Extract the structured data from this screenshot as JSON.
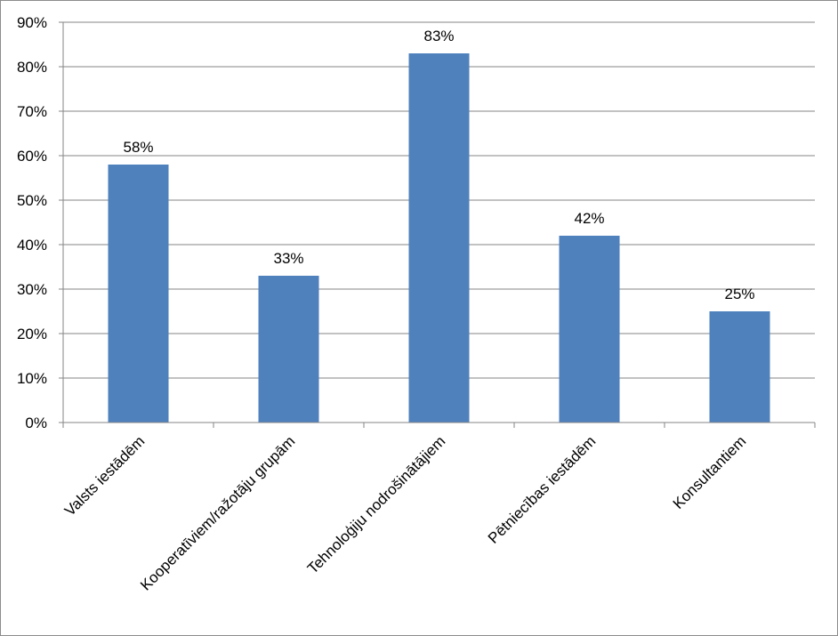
{
  "chart_data": {
    "type": "bar",
    "categories": [
      "Valsts iestādēm",
      "Kooperatīviem/ražotāju grupām",
      "Tehnoloģiju nodrošinātājiem",
      "Pētniecības iestādēm",
      "Konsultantiem"
    ],
    "values": [
      58,
      33,
      83,
      42,
      25
    ],
    "data_labels": [
      "58%",
      "33%",
      "83%",
      "42%",
      "25%"
    ],
    "title": "",
    "xlabel": "",
    "ylabel": "",
    "ylim": [
      0,
      90
    ],
    "y_ticks": [
      0,
      10,
      20,
      30,
      40,
      50,
      60,
      70,
      80,
      90
    ],
    "y_tick_labels": [
      "0%",
      "10%",
      "20%",
      "30%",
      "40%",
      "50%",
      "60%",
      "70%",
      "80%",
      "90%"
    ],
    "grid": true,
    "legend": "none",
    "bar_color": "#4f81bd",
    "gridline_color": "#868686"
  }
}
